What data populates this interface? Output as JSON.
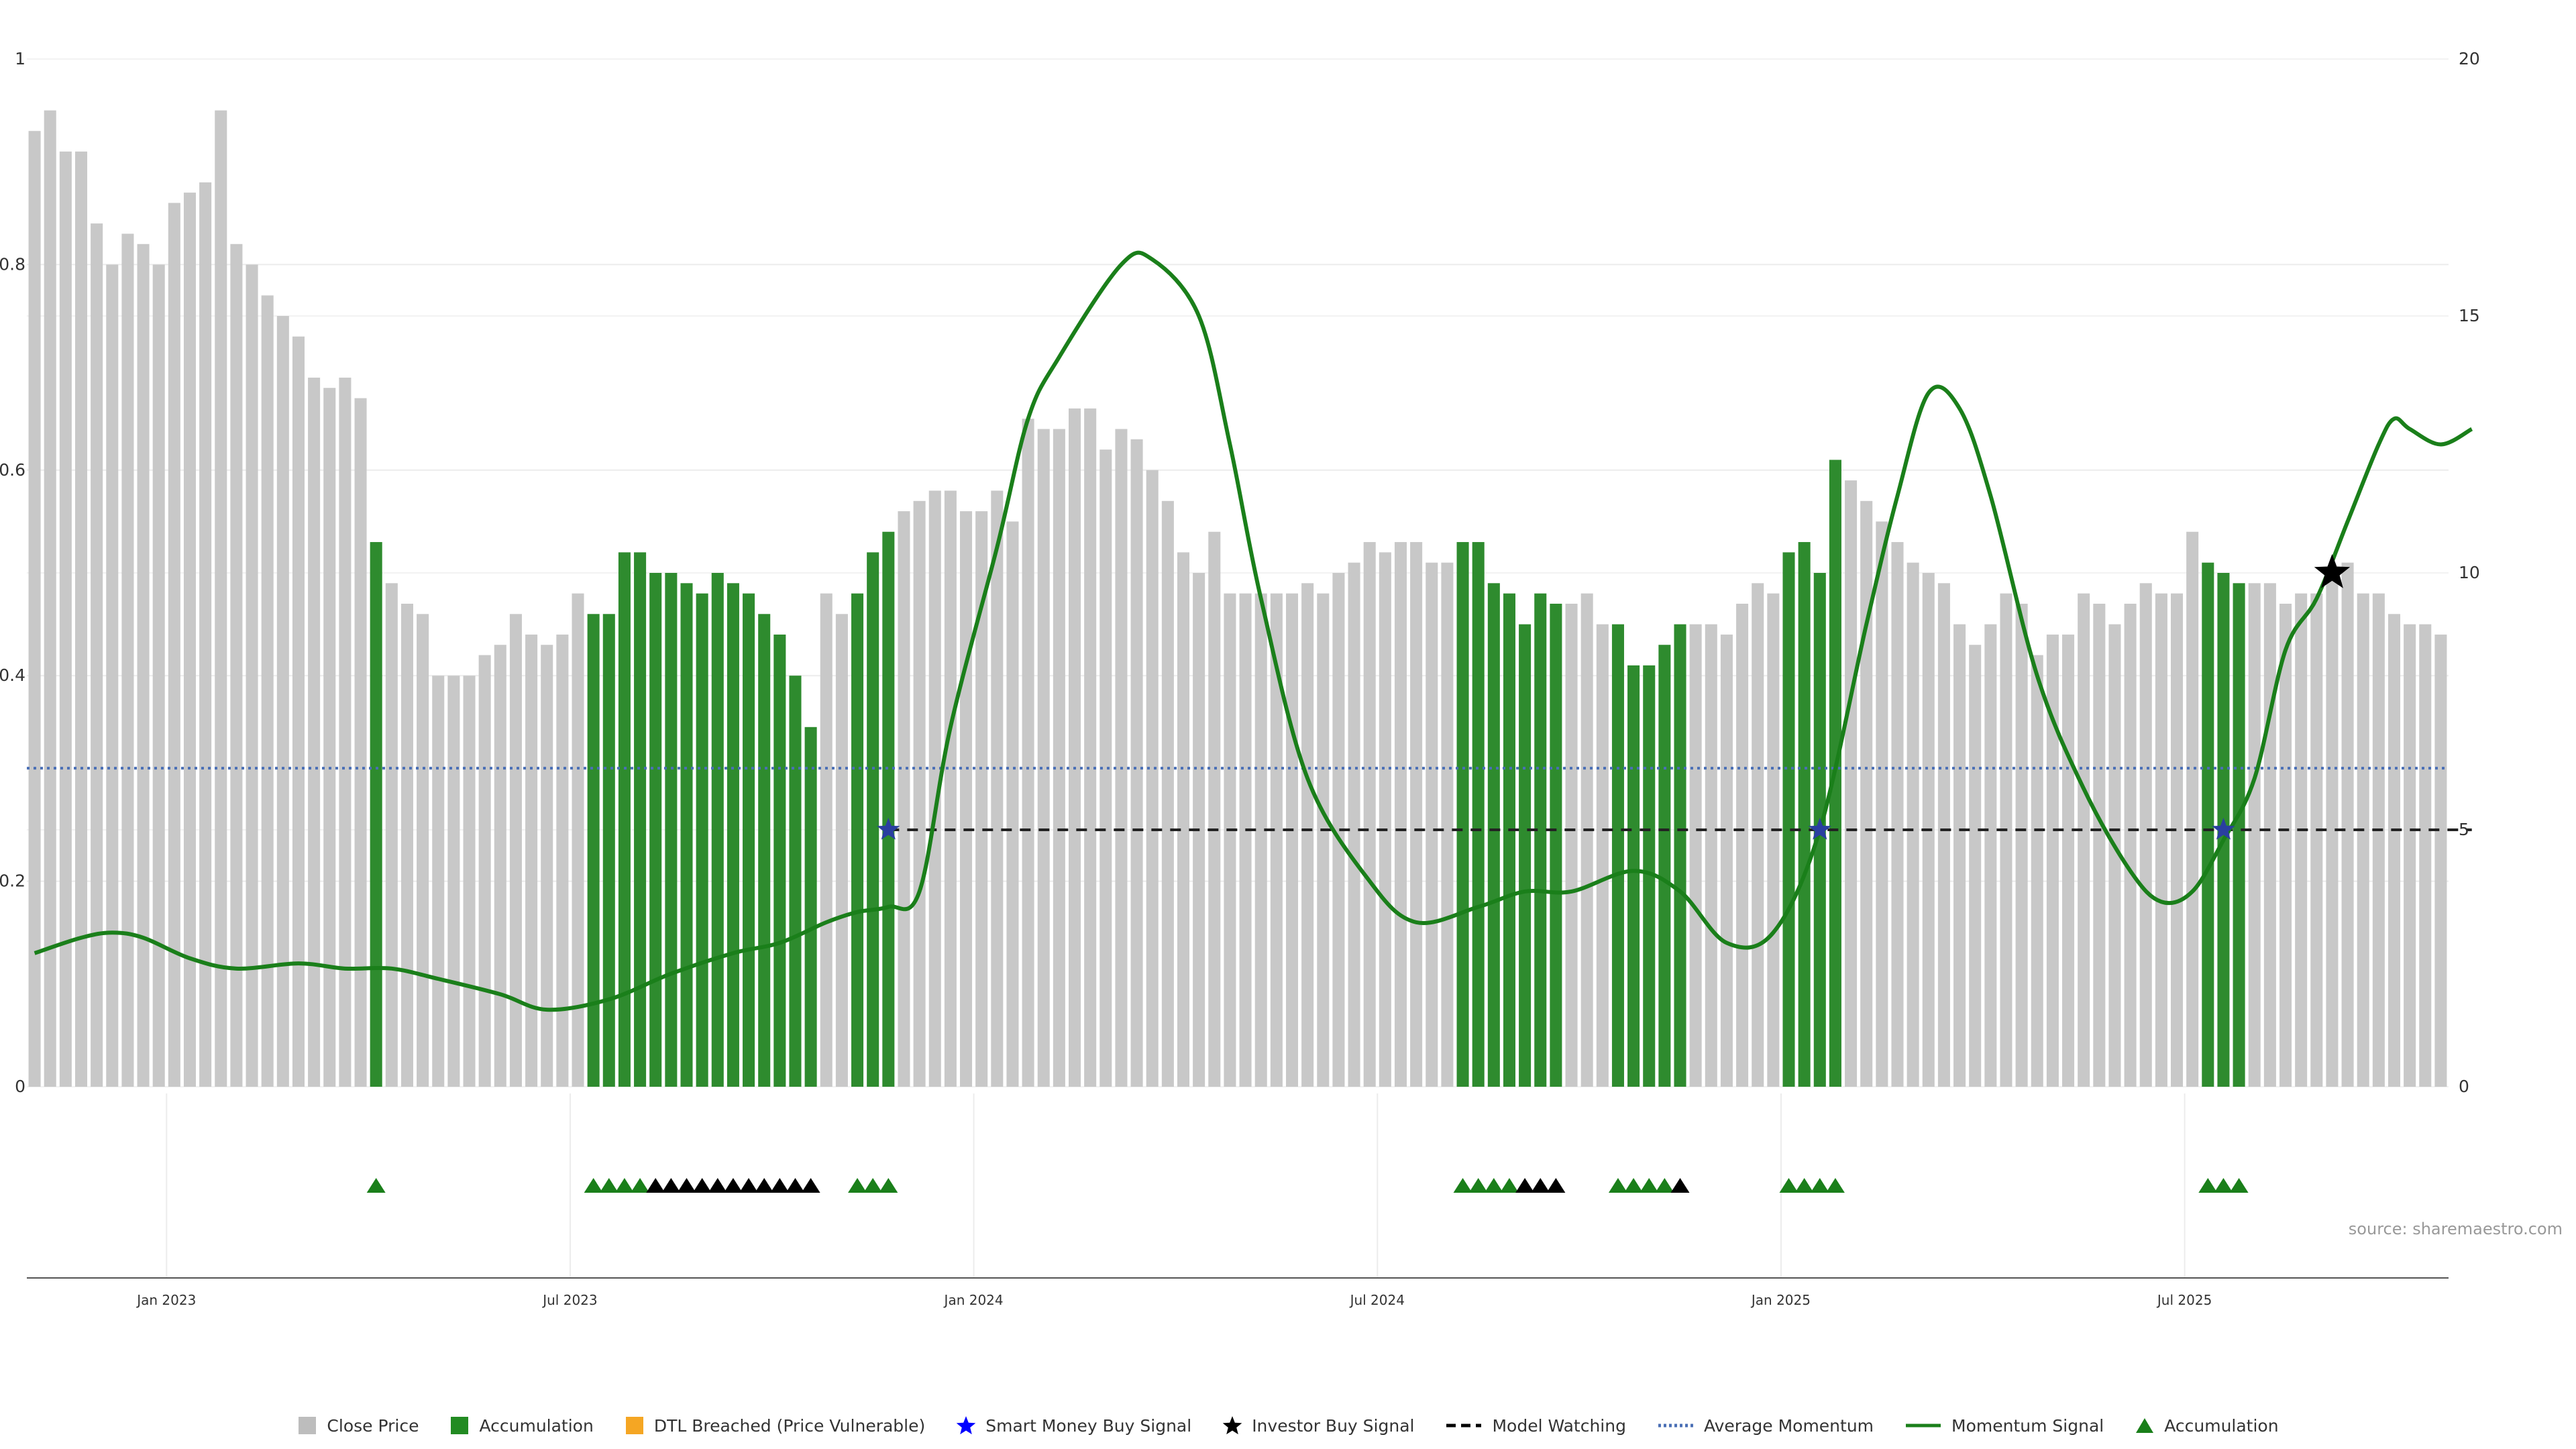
{
  "chart_data": {
    "type": "bar",
    "source": "source: sharemaestro.com",
    "left_axis": {
      "ticks": [
        "0",
        "0.2",
        "0.4",
        "0.6",
        "0.8",
        "1"
      ],
      "ylim": [
        0,
        1
      ]
    },
    "right_axis": {
      "ticks": [
        "0",
        "5",
        "10",
        "15",
        "20"
      ],
      "ylim": [
        0,
        20
      ]
    },
    "x_ticks": [
      "Jan 2023",
      "Jul 2023",
      "Jan 2024",
      "Jul 2024",
      "Jan 2025",
      "Jul 2025"
    ],
    "legend": [
      {
        "label": "Close Price",
        "marker": "square",
        "color": "#bdbdbd"
      },
      {
        "label": "Accumulation",
        "marker": "square",
        "color": "#228b22"
      },
      {
        "label": "DTL Breached (Price Vulnerable)",
        "marker": "square",
        "color": "#f5a623"
      },
      {
        "label": "Smart Money Buy Signal",
        "marker": "star",
        "color": "#0000ff"
      },
      {
        "label": "Investor Buy Signal",
        "marker": "star",
        "color": "#000000"
      },
      {
        "label": "Model Watching",
        "marker": "dashed-line",
        "color": "#000000"
      },
      {
        "label": "Average Momentum",
        "marker": "dotted-line",
        "color": "#4a6fb5"
      },
      {
        "label": "Momentum Signal",
        "marker": "line",
        "color": "#1a7f1a"
      },
      {
        "label": "Accumulation",
        "marker": "triangle",
        "color": "#1a7f1a"
      }
    ],
    "colors": {
      "close": "#c8c8c8",
      "accumulation": "#2e8b2e",
      "momentum": "#1a7f1a",
      "average": "#4a6fb5",
      "watching": "#222222",
      "marker_green": "#1a7f1a",
      "marker_black": "#000000"
    },
    "close_price": [
      0.93,
      0.95,
      0.91,
      0.91,
      0.84,
      0.8,
      0.83,
      0.82,
      0.8,
      0.86,
      0.87,
      0.88,
      0.95,
      0.82,
      0.8,
      0.77,
      0.75,
      0.73,
      0.69,
      0.68,
      0.69,
      0.67,
      0.53,
      0.49,
      0.47,
      0.46,
      0.4,
      0.4,
      0.4,
      0.42,
      0.43,
      0.46,
      0.44,
      0.43,
      0.44,
      0.48,
      0.46,
      0.46,
      0.52,
      0.52,
      0.5,
      0.5,
      0.49,
      0.48,
      0.5,
      0.49,
      0.48,
      0.46,
      0.44,
      0.4,
      0.35,
      0.48,
      0.46,
      0.48,
      0.52,
      0.54,
      0.56,
      0.57,
      0.58,
      0.58,
      0.56,
      0.56,
      0.58,
      0.55,
      0.65,
      0.64,
      0.64,
      0.66,
      0.66,
      0.62,
      0.64,
      0.63,
      0.6,
      0.57,
      0.52,
      0.5,
      0.54,
      0.48,
      0.48,
      0.48,
      0.48,
      0.48,
      0.49,
      0.48,
      0.5,
      0.51,
      0.53,
      0.52,
      0.53,
      0.53,
      0.51,
      0.51,
      0.53,
      0.53,
      0.49,
      0.48,
      0.45,
      0.48,
      0.47,
      0.47,
      0.48,
      0.45,
      0.45,
      0.41,
      0.41,
      0.43,
      0.45,
      0.45,
      0.45,
      0.44,
      0.47,
      0.49,
      0.48,
      0.52,
      0.53,
      0.5,
      0.61,
      0.59,
      0.57,
      0.55,
      0.53,
      0.51,
      0.5,
      0.49,
      0.45,
      0.43,
      0.45,
      0.48,
      0.47,
      0.42,
      0.44,
      0.44,
      0.48,
      0.47,
      0.45,
      0.47,
      0.49,
      0.48,
      0.48,
      0.54,
      0.51,
      0.5,
      0.49,
      0.49,
      0.49,
      0.47,
      0.48,
      0.48,
      0.5,
      0.51,
      0.48,
      0.48,
      0.46,
      0.45,
      0.45,
      0.44
    ],
    "accumulation_bars": [
      22,
      36,
      37,
      38,
      39,
      40,
      41,
      42,
      43,
      44,
      45,
      46,
      47,
      48,
      49,
      50,
      53,
      54,
      55,
      92,
      93,
      94,
      95,
      96,
      97,
      98,
      102,
      103,
      104,
      105,
      106,
      113,
      114,
      115,
      116,
      140,
      141,
      142
    ],
    "momentum_signal": [
      [
        0,
        2.6
      ],
      [
        3,
        2.9
      ],
      [
        5,
        3.0
      ],
      [
        7,
        2.9
      ],
      [
        10,
        2.5
      ],
      [
        13,
        2.3
      ],
      [
        17,
        2.4
      ],
      [
        20,
        2.3
      ],
      [
        23,
        2.3
      ],
      [
        26,
        2.1
      ],
      [
        30,
        1.8
      ],
      [
        33,
        1.5
      ],
      [
        37,
        1.7
      ],
      [
        41,
        2.2
      ],
      [
        45,
        2.6
      ],
      [
        48,
        2.8
      ],
      [
        51,
        3.2
      ],
      [
        53,
        3.4
      ],
      [
        55,
        3.5
      ],
      [
        57,
        3.8
      ],
      [
        59,
        7.0
      ],
      [
        62,
        10.5
      ],
      [
        64,
        13.0
      ],
      [
        66,
        14.2
      ],
      [
        70,
        16.0
      ],
      [
        72,
        16.1
      ],
      [
        75,
        15.0
      ],
      [
        77,
        12.5
      ],
      [
        79,
        9.5
      ],
      [
        82,
        6.0
      ],
      [
        86,
        4.0
      ],
      [
        89,
        3.2
      ],
      [
        93,
        3.5
      ],
      [
        96,
        3.8
      ],
      [
        99,
        3.8
      ],
      [
        103,
        4.2
      ],
      [
        106,
        3.8
      ],
      [
        109,
        2.8
      ],
      [
        112,
        3.0
      ],
      [
        115,
        5.0
      ],
      [
        118,
        9.0
      ],
      [
        120,
        11.5
      ],
      [
        122,
        13.5
      ],
      [
        124,
        13.2
      ],
      [
        126,
        11.5
      ],
      [
        129,
        8.0
      ],
      [
        132,
        5.8
      ],
      [
        135,
        4.2
      ],
      [
        137,
        3.6
      ],
      [
        139,
        3.8
      ],
      [
        141,
        4.8
      ],
      [
        143,
        6.0
      ],
      [
        145,
        8.5
      ],
      [
        147,
        9.5
      ],
      [
        149,
        11.0
      ],
      [
        151,
        12.5
      ],
      [
        152,
        13.0
      ],
      [
        153,
        12.8
      ],
      [
        155,
        12.5
      ],
      [
        157,
        12.8
      ]
    ],
    "average_momentum": 6.2,
    "model_watching": {
      "from": 55,
      "to": 157,
      "level": 5
    },
    "smart_money_signals": [
      [
        55,
        5
      ],
      [
        115,
        5
      ],
      [
        141,
        5
      ]
    ],
    "investor_signals": [
      [
        148,
        10
      ]
    ],
    "accumulation_markers": [
      {
        "i": 22,
        "c": "green"
      },
      {
        "i": 36,
        "c": "green"
      },
      {
        "i": 37,
        "c": "green"
      },
      {
        "i": 38,
        "c": "green"
      },
      {
        "i": 39,
        "c": "green"
      },
      {
        "i": 40,
        "c": "black"
      },
      {
        "i": 41,
        "c": "black"
      },
      {
        "i": 42,
        "c": "black"
      },
      {
        "i": 43,
        "c": "black"
      },
      {
        "i": 44,
        "c": "black"
      },
      {
        "i": 45,
        "c": "black"
      },
      {
        "i": 46,
        "c": "black"
      },
      {
        "i": 47,
        "c": "black"
      },
      {
        "i": 48,
        "c": "black"
      },
      {
        "i": 49,
        "c": "black"
      },
      {
        "i": 50,
        "c": "black"
      },
      {
        "i": 53,
        "c": "green"
      },
      {
        "i": 54,
        "c": "green"
      },
      {
        "i": 55,
        "c": "green"
      },
      {
        "i": 92,
        "c": "green"
      },
      {
        "i": 93,
        "c": "green"
      },
      {
        "i": 94,
        "c": "green"
      },
      {
        "i": 95,
        "c": "green"
      },
      {
        "i": 96,
        "c": "black"
      },
      {
        "i": 97,
        "c": "black"
      },
      {
        "i": 98,
        "c": "black"
      },
      {
        "i": 102,
        "c": "green"
      },
      {
        "i": 103,
        "c": "green"
      },
      {
        "i": 104,
        "c": "green"
      },
      {
        "i": 105,
        "c": "green"
      },
      {
        "i": 106,
        "c": "black"
      },
      {
        "i": 113,
        "c": "green"
      },
      {
        "i": 114,
        "c": "green"
      },
      {
        "i": 115,
        "c": "green"
      },
      {
        "i": 116,
        "c": "green"
      },
      {
        "i": 140,
        "c": "green"
      },
      {
        "i": 141,
        "c": "green"
      },
      {
        "i": 142,
        "c": "green"
      }
    ],
    "grid": true,
    "legend_position": "bottom"
  }
}
